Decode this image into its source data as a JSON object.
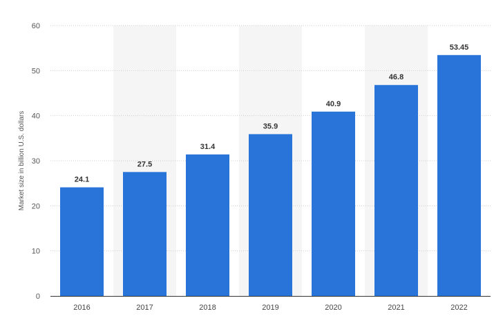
{
  "chart_data": {
    "type": "bar",
    "title": "",
    "xlabel": "",
    "ylabel": "Market size in billion U.S. dollars",
    "categories": [
      "2016",
      "2017",
      "2018",
      "2019",
      "2020",
      "2021",
      "2022"
    ],
    "values": [
      24.1,
      27.5,
      31.4,
      35.9,
      40.9,
      46.8,
      53.45
    ],
    "data_labels": [
      "24.1",
      "27.5",
      "31.4",
      "35.9",
      "40.9",
      "46.8",
      "53.45"
    ],
    "ylim": [
      0,
      60
    ],
    "yticks": [
      "0",
      "10",
      "20",
      "30",
      "40",
      "50",
      "60"
    ],
    "grid": true,
    "legend": "none",
    "colors": {
      "bar": "#2874d9",
      "alt_band": "#f5f5f5",
      "grid": "#cccccc",
      "axis": "#333333"
    }
  }
}
